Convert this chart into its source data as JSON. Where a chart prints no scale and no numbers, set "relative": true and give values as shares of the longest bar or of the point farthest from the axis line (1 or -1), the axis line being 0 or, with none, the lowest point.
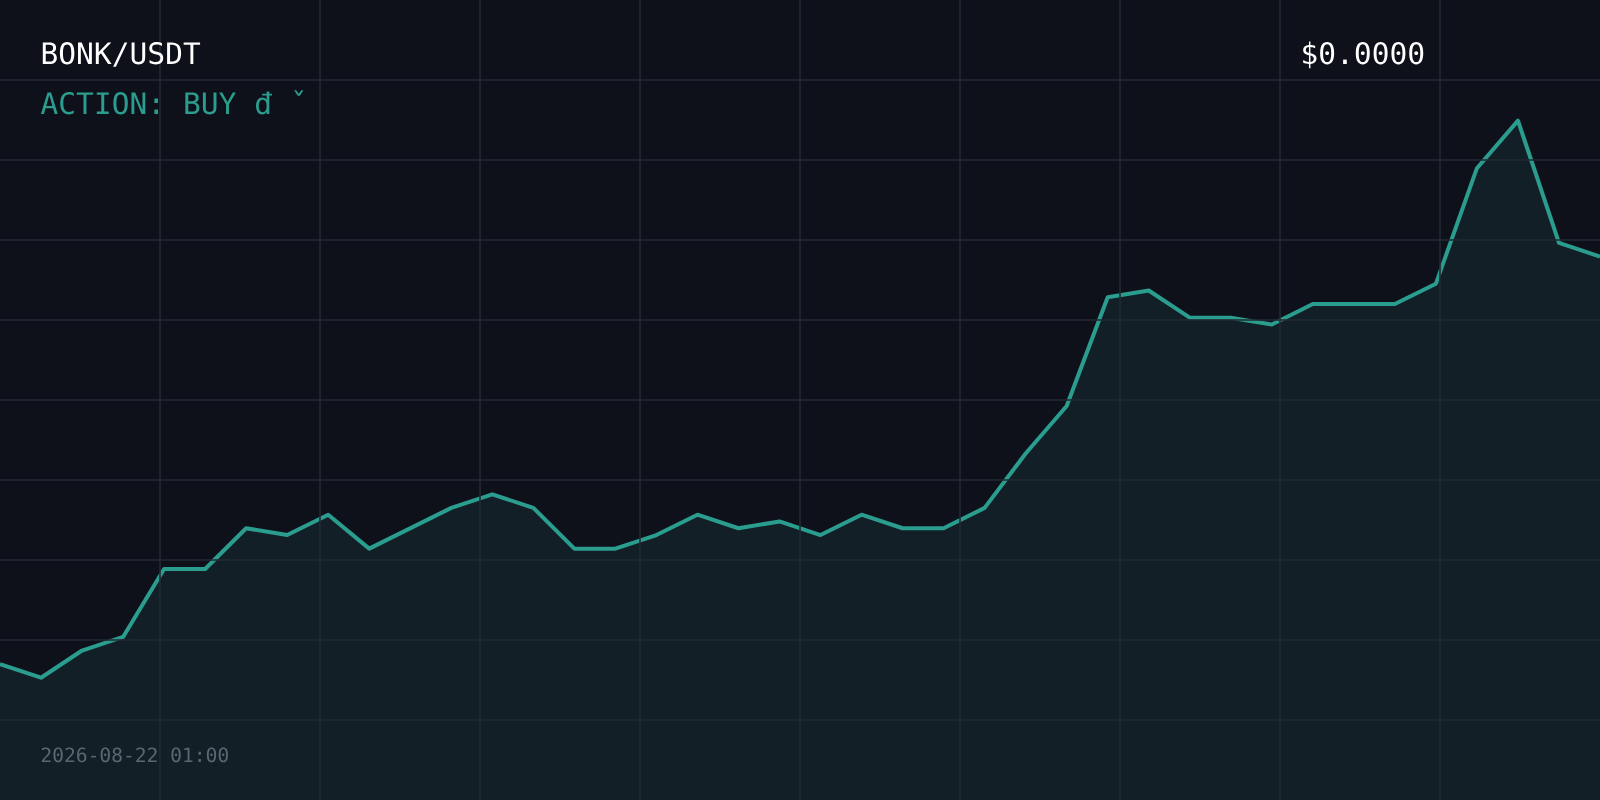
{
  "chart_data": {
    "type": "area",
    "title": "BONK/USDT",
    "subtitle": "ACTION: BUY đ ˇ",
    "annotations": [
      "$0.0000",
      "2026-08-22 01:00"
    ],
    "categories": [
      null,
      null,
      null,
      null,
      null,
      null,
      null,
      null,
      null,
      null,
      null,
      null,
      null,
      null,
      null,
      null,
      null,
      null,
      null,
      null,
      null,
      null,
      null,
      null,
      null,
      null,
      null,
      null,
      null,
      null,
      null,
      null,
      null,
      null,
      null,
      null,
      null,
      null,
      null,
      null
    ],
    "values": [
      0.2,
      0.18,
      0.22,
      0.24,
      0.34,
      0.34,
      0.4,
      0.39,
      0.42,
      0.37,
      0.4,
      0.43,
      0.45,
      0.43,
      0.37,
      0.37,
      0.39,
      0.42,
      0.4,
      0.41,
      0.39,
      0.42,
      0.4,
      0.4,
      0.43,
      0.51,
      0.58,
      0.74,
      0.75,
      0.71,
      0.71,
      0.7,
      0.73,
      0.73,
      0.73,
      0.76,
      0.93,
      1,
      0.82,
      0.8
    ],
    "relative": true,
    "color": "#2a9d8f",
    "grid": true
  }
}
